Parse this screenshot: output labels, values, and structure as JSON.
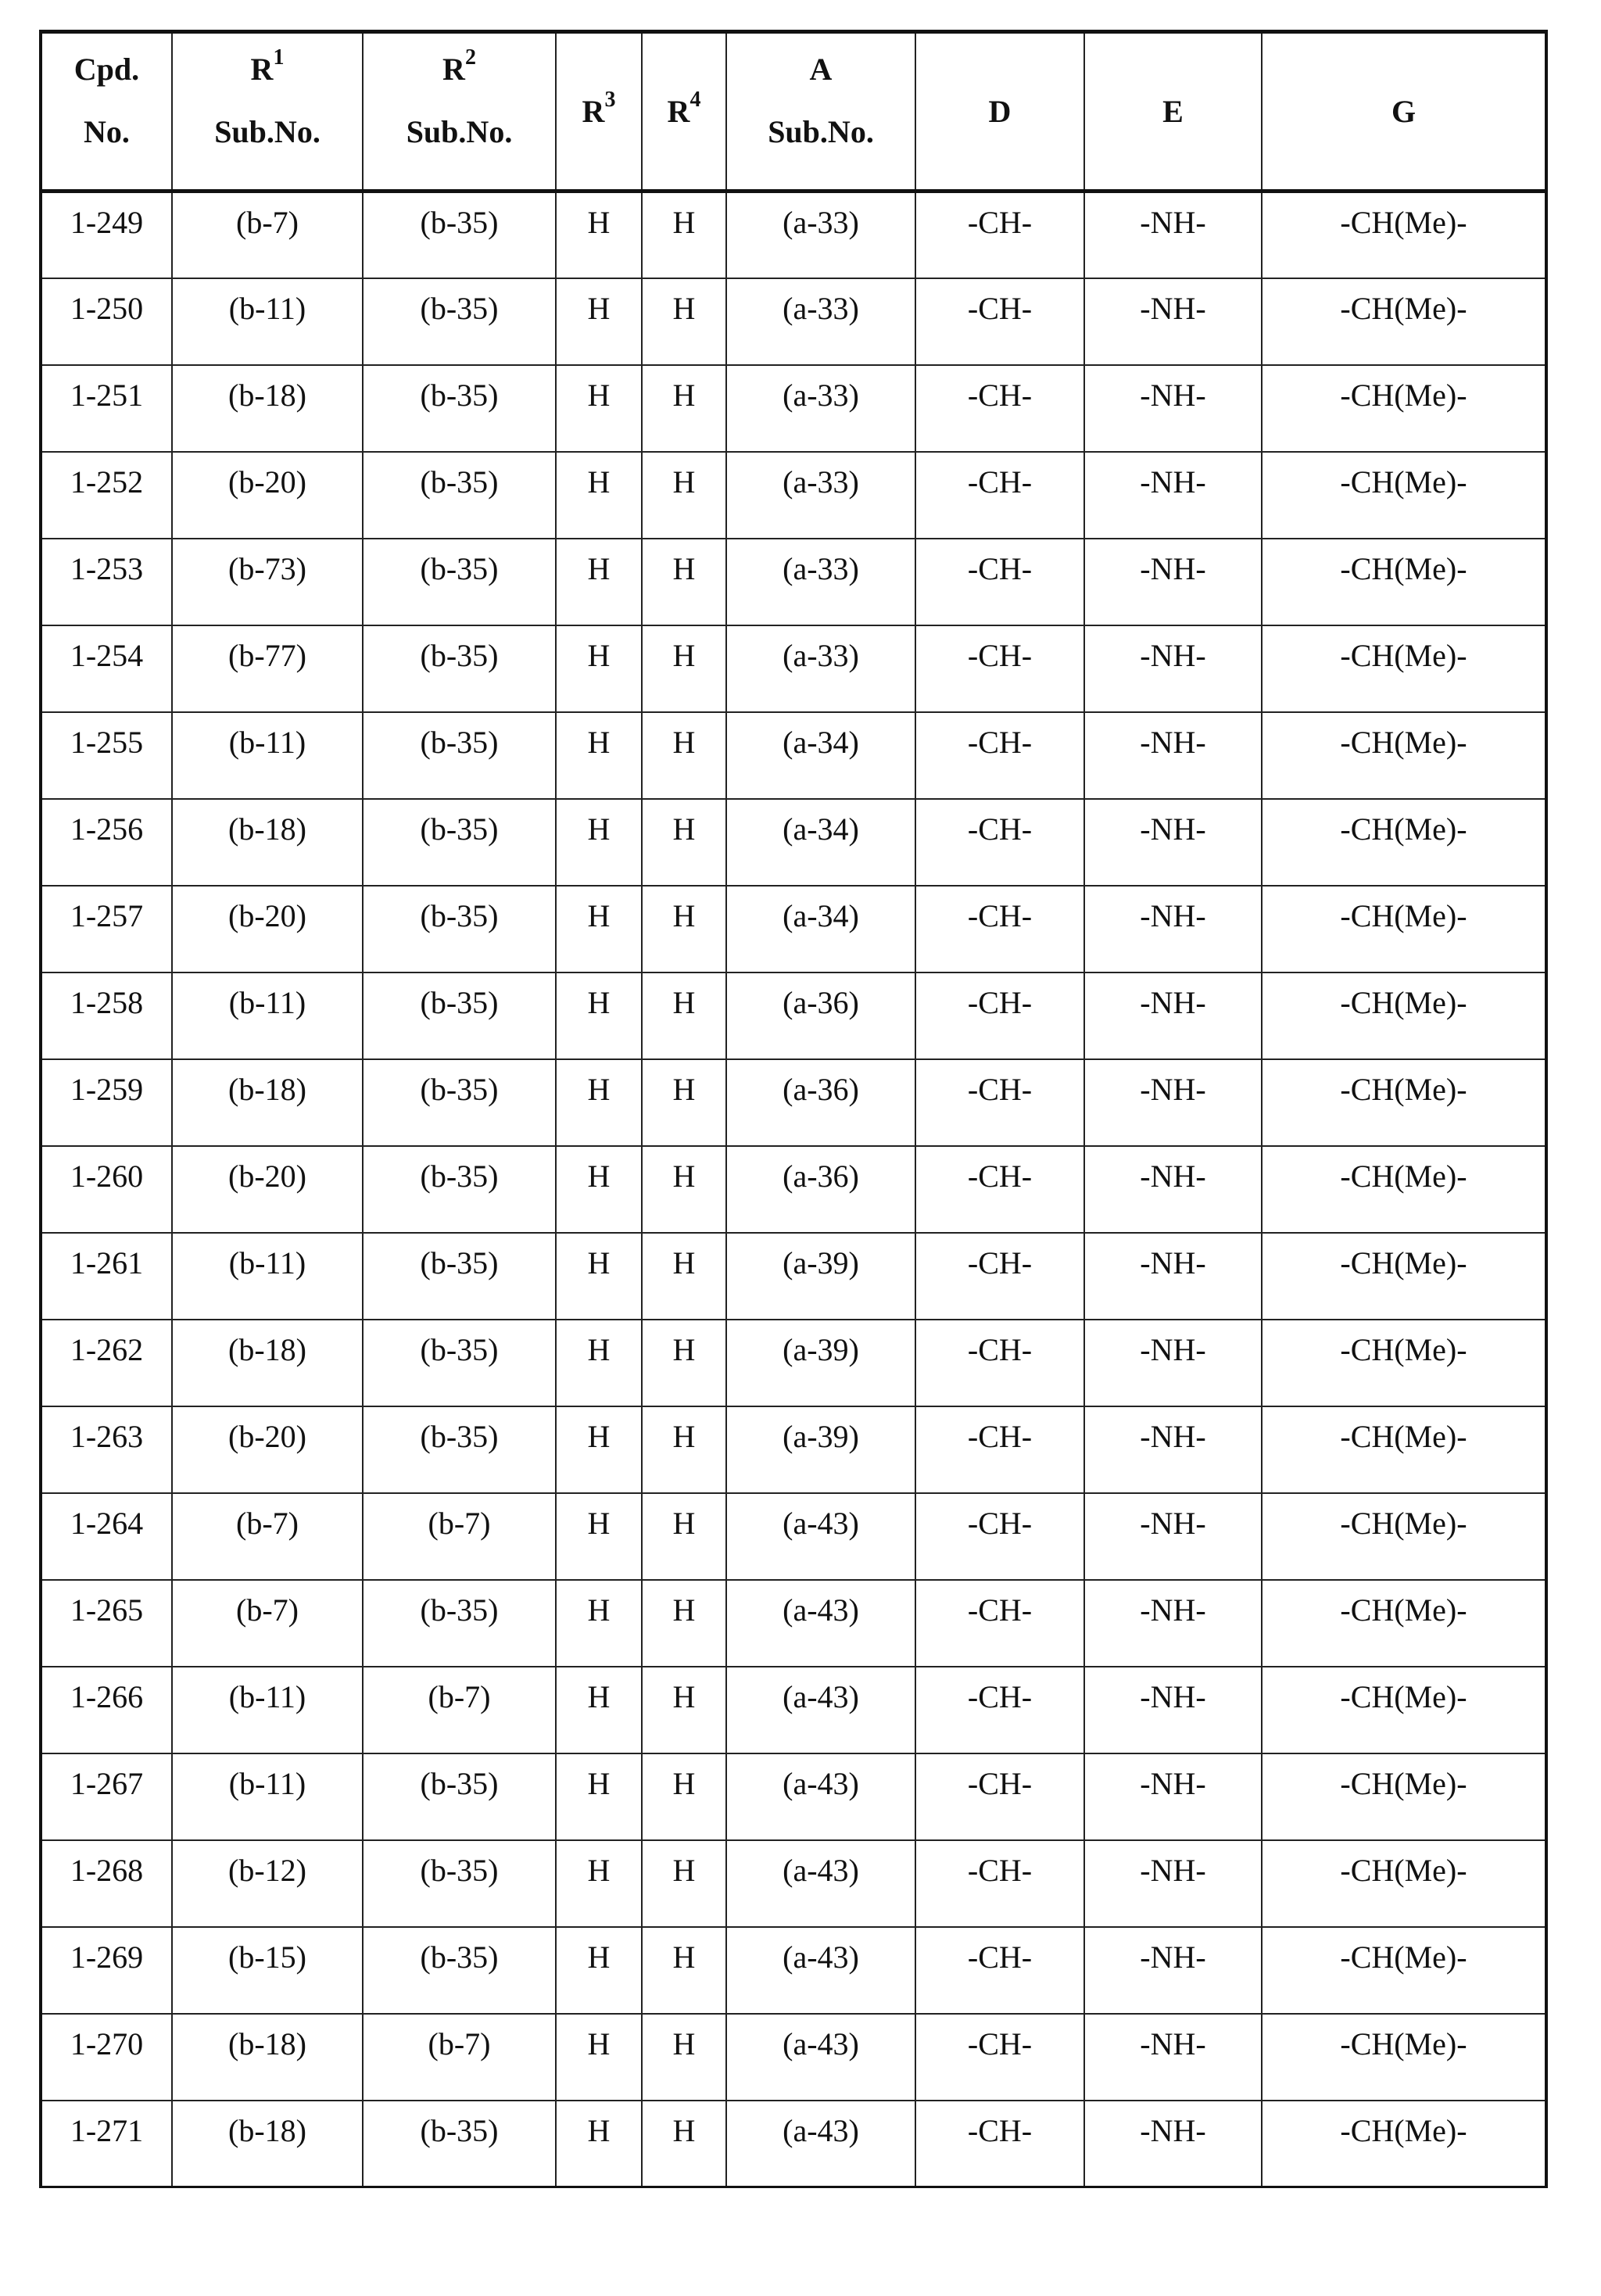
{
  "headers": {
    "cpd": [
      "Cpd.",
      "No."
    ],
    "r1": {
      "label": "R",
      "sup": "1",
      "sub": "Sub.No."
    },
    "r2": {
      "label": "R",
      "sup": "2",
      "sub": "Sub.No."
    },
    "r3": {
      "label": "R",
      "sup": "3"
    },
    "r4": {
      "label": "R",
      "sup": "4"
    },
    "a": {
      "label": "A",
      "sub": "Sub.No."
    },
    "d": "D",
    "e": "E",
    "g": "G"
  },
  "rows": [
    [
      "1-249",
      "(b-7)",
      "(b-35)",
      "H",
      "H",
      "(a-33)",
      "-CH-",
      "-NH-",
      "-CH(Me)-"
    ],
    [
      "1-250",
      "(b-11)",
      "(b-35)",
      "H",
      "H",
      "(a-33)",
      "-CH-",
      "-NH-",
      "-CH(Me)-"
    ],
    [
      "1-251",
      "(b-18)",
      "(b-35)",
      "H",
      "H",
      "(a-33)",
      "-CH-",
      "-NH-",
      "-CH(Me)-"
    ],
    [
      "1-252",
      "(b-20)",
      "(b-35)",
      "H",
      "H",
      "(a-33)",
      "-CH-",
      "-NH-",
      "-CH(Me)-"
    ],
    [
      "1-253",
      "(b-73)",
      "(b-35)",
      "H",
      "H",
      "(a-33)",
      "-CH-",
      "-NH-",
      "-CH(Me)-"
    ],
    [
      "1-254",
      "(b-77)",
      "(b-35)",
      "H",
      "H",
      "(a-33)",
      "-CH-",
      "-NH-",
      "-CH(Me)-"
    ],
    [
      "1-255",
      "(b-11)",
      "(b-35)",
      "H",
      "H",
      "(a-34)",
      "-CH-",
      "-NH-",
      "-CH(Me)-"
    ],
    [
      "1-256",
      "(b-18)",
      "(b-35)",
      "H",
      "H",
      "(a-34)",
      "-CH-",
      "-NH-",
      "-CH(Me)-"
    ],
    [
      "1-257",
      "(b-20)",
      "(b-35)",
      "H",
      "H",
      "(a-34)",
      "-CH-",
      "-NH-",
      "-CH(Me)-"
    ],
    [
      "1-258",
      "(b-11)",
      "(b-35)",
      "H",
      "H",
      "(a-36)",
      "-CH-",
      "-NH-",
      "-CH(Me)-"
    ],
    [
      "1-259",
      "(b-18)",
      "(b-35)",
      "H",
      "H",
      "(a-36)",
      "-CH-",
      "-NH-",
      "-CH(Me)-"
    ],
    [
      "1-260",
      "(b-20)",
      "(b-35)",
      "H",
      "H",
      "(a-36)",
      "-CH-",
      "-NH-",
      "-CH(Me)-"
    ],
    [
      "1-261",
      "(b-11)",
      "(b-35)",
      "H",
      "H",
      "(a-39)",
      "-CH-",
      "-NH-",
      "-CH(Me)-"
    ],
    [
      "1-262",
      "(b-18)",
      "(b-35)",
      "H",
      "H",
      "(a-39)",
      "-CH-",
      "-NH-",
      "-CH(Me)-"
    ],
    [
      "1-263",
      "(b-20)",
      "(b-35)",
      "H",
      "H",
      "(a-39)",
      "-CH-",
      "-NH-",
      "-CH(Me)-"
    ],
    [
      "1-264",
      "(b-7)",
      "(b-7)",
      "H",
      "H",
      "(a-43)",
      "-CH-",
      "-NH-",
      "-CH(Me)-"
    ],
    [
      "1-265",
      "(b-7)",
      "(b-35)",
      "H",
      "H",
      "(a-43)",
      "-CH-",
      "-NH-",
      "-CH(Me)-"
    ],
    [
      "1-266",
      "(b-11)",
      "(b-7)",
      "H",
      "H",
      "(a-43)",
      "-CH-",
      "-NH-",
      "-CH(Me)-"
    ],
    [
      "1-267",
      "(b-11)",
      "(b-35)",
      "H",
      "H",
      "(a-43)",
      "-CH-",
      "-NH-",
      "-CH(Me)-"
    ],
    [
      "1-268",
      "(b-12)",
      "(b-35)",
      "H",
      "H",
      "(a-43)",
      "-CH-",
      "-NH-",
      "-CH(Me)-"
    ],
    [
      "1-269",
      "(b-15)",
      "(b-35)",
      "H",
      "H",
      "(a-43)",
      "-CH-",
      "-NH-",
      "-CH(Me)-"
    ],
    [
      "1-270",
      "(b-18)",
      "(b-7)",
      "H",
      "H",
      "(a-43)",
      "-CH-",
      "-NH-",
      "-CH(Me)-"
    ],
    [
      "1-271",
      "(b-18)",
      "(b-35)",
      "H",
      "H",
      "(a-43)",
      "-CH-",
      "-NH-",
      "-CH(Me)-"
    ]
  ]
}
